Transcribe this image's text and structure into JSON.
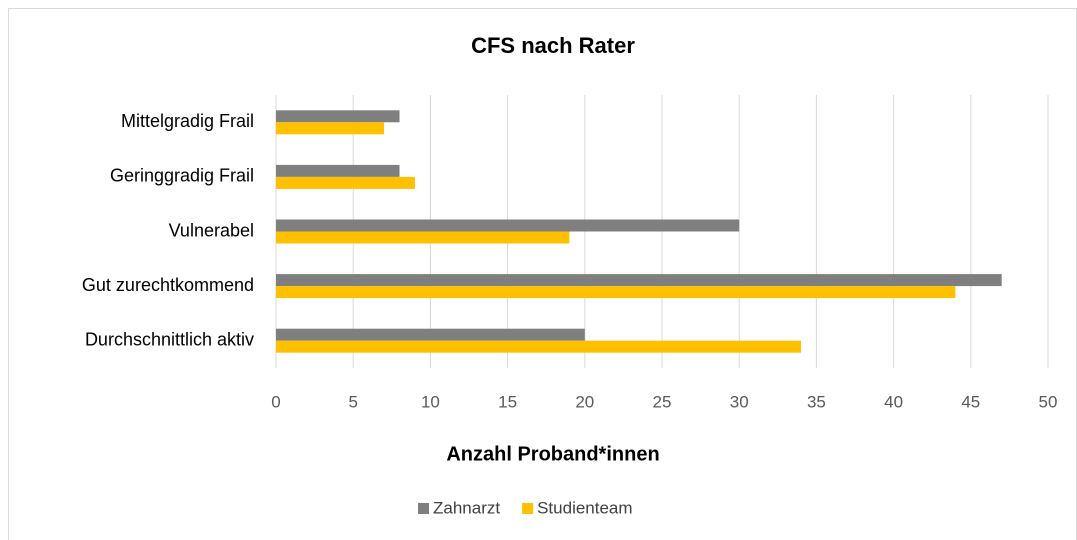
{
  "chart_data": {
    "type": "bar",
    "orientation": "horizontal",
    "title": "CFS nach Rater",
    "x_label": "Anzahl Proband*innen",
    "categories": [
      "Durchschnittlich aktiv",
      "Gut zurechtkommend",
      "Vulnerabel",
      "Geringgradig Frail",
      "Mittelgradig Frail"
    ],
    "series": [
      {
        "name": "Zahnarzt",
        "color": "#7f7f7f",
        "values": [
          20,
          47,
          30,
          8,
          8
        ]
      },
      {
        "name": "Studienteam",
        "color": "#ffc000",
        "values": [
          34,
          44,
          19,
          9,
          7
        ]
      }
    ],
    "xlim": [
      0,
      50
    ],
    "xticks": [
      0,
      5,
      10,
      15,
      20,
      25,
      30,
      35,
      40,
      45,
      50
    ],
    "grid": true,
    "legend": "bottom"
  }
}
